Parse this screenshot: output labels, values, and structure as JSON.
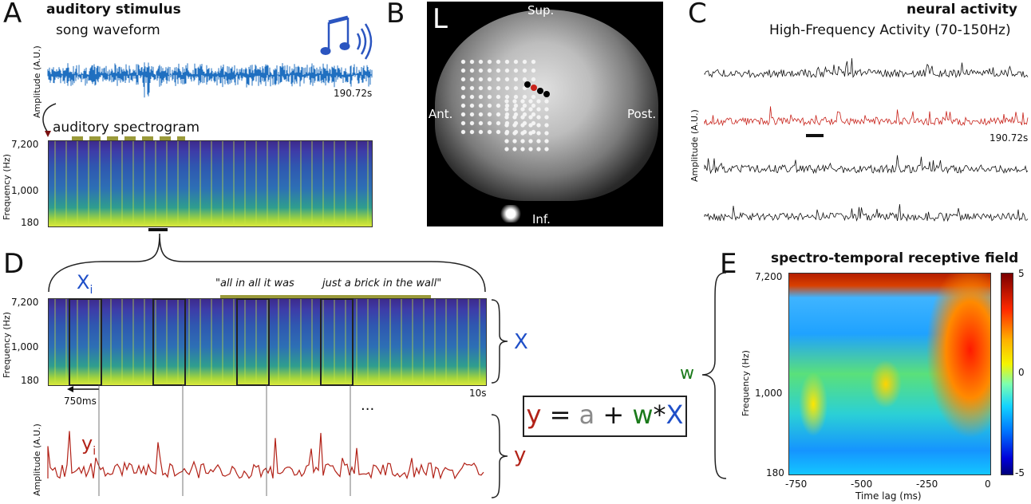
{
  "panels": {
    "A": {
      "letter": "A",
      "title": "auditory stimulus",
      "waveform_label": "song waveform",
      "amplitude_label": "Amplitude (A.U.)",
      "duration": "190.72s",
      "spectrogram_label": "auditory spectrogram",
      "freq_label": "Frequency (Hz)",
      "freq_ticks": [
        "7,200",
        "1,000",
        "180"
      ],
      "icon": "music-note-sound-icon"
    },
    "B": {
      "letter": "B",
      "hemisphere": "L",
      "sup": "Sup.",
      "inf": "Inf.",
      "ant": "Ant.",
      "post": "Post."
    },
    "C": {
      "letter": "C",
      "title": "neural activity",
      "subtitle": "High-Frequency Activity (70-150Hz)",
      "amplitude_label": "Amplitude (A.U.)",
      "duration": "190.72s"
    },
    "D": {
      "letter": "D",
      "xi": "X",
      "xi_sub": "i",
      "lyric1": "\"all in all it was",
      "lyric2": "just a brick in the wall\"",
      "freq_label": "Frequency (Hz)",
      "freq_ticks": [
        "7,200",
        "1,000",
        "180"
      ],
      "window_label": "750ms",
      "duration": "10s",
      "X": "X",
      "y": "y",
      "yi": "y",
      "yi_sub": "i",
      "ellipsis": "...",
      "amplitude_label": "Amplitude (A.U.)"
    },
    "equation": {
      "y": "y",
      "eq": "=",
      "a": "a",
      "plus": "+",
      "w": "w",
      "star": "*",
      "X": "X"
    },
    "E": {
      "letter": "E",
      "title": "spectro-temporal receptive field",
      "w": "w",
      "freq_label": "Frequency (Hz)",
      "freq_ticks": [
        "7,200",
        "1,000",
        "180"
      ],
      "x_ticks": [
        "-750",
        "-500",
        "-250",
        "0"
      ],
      "xlabel": "Time lag (ms)",
      "cbar_ticks": [
        "5",
        "0",
        "-5"
      ]
    }
  },
  "colors": {
    "stimulus_blue": "#1f6fc0",
    "neural_red": "#c8221a",
    "y_red": "#b22218",
    "w_green": "#1b7a1b",
    "x_blue": "#1f4fc8",
    "a_gray": "#8a8a8a",
    "olive_bar": "#9a9a3a"
  }
}
